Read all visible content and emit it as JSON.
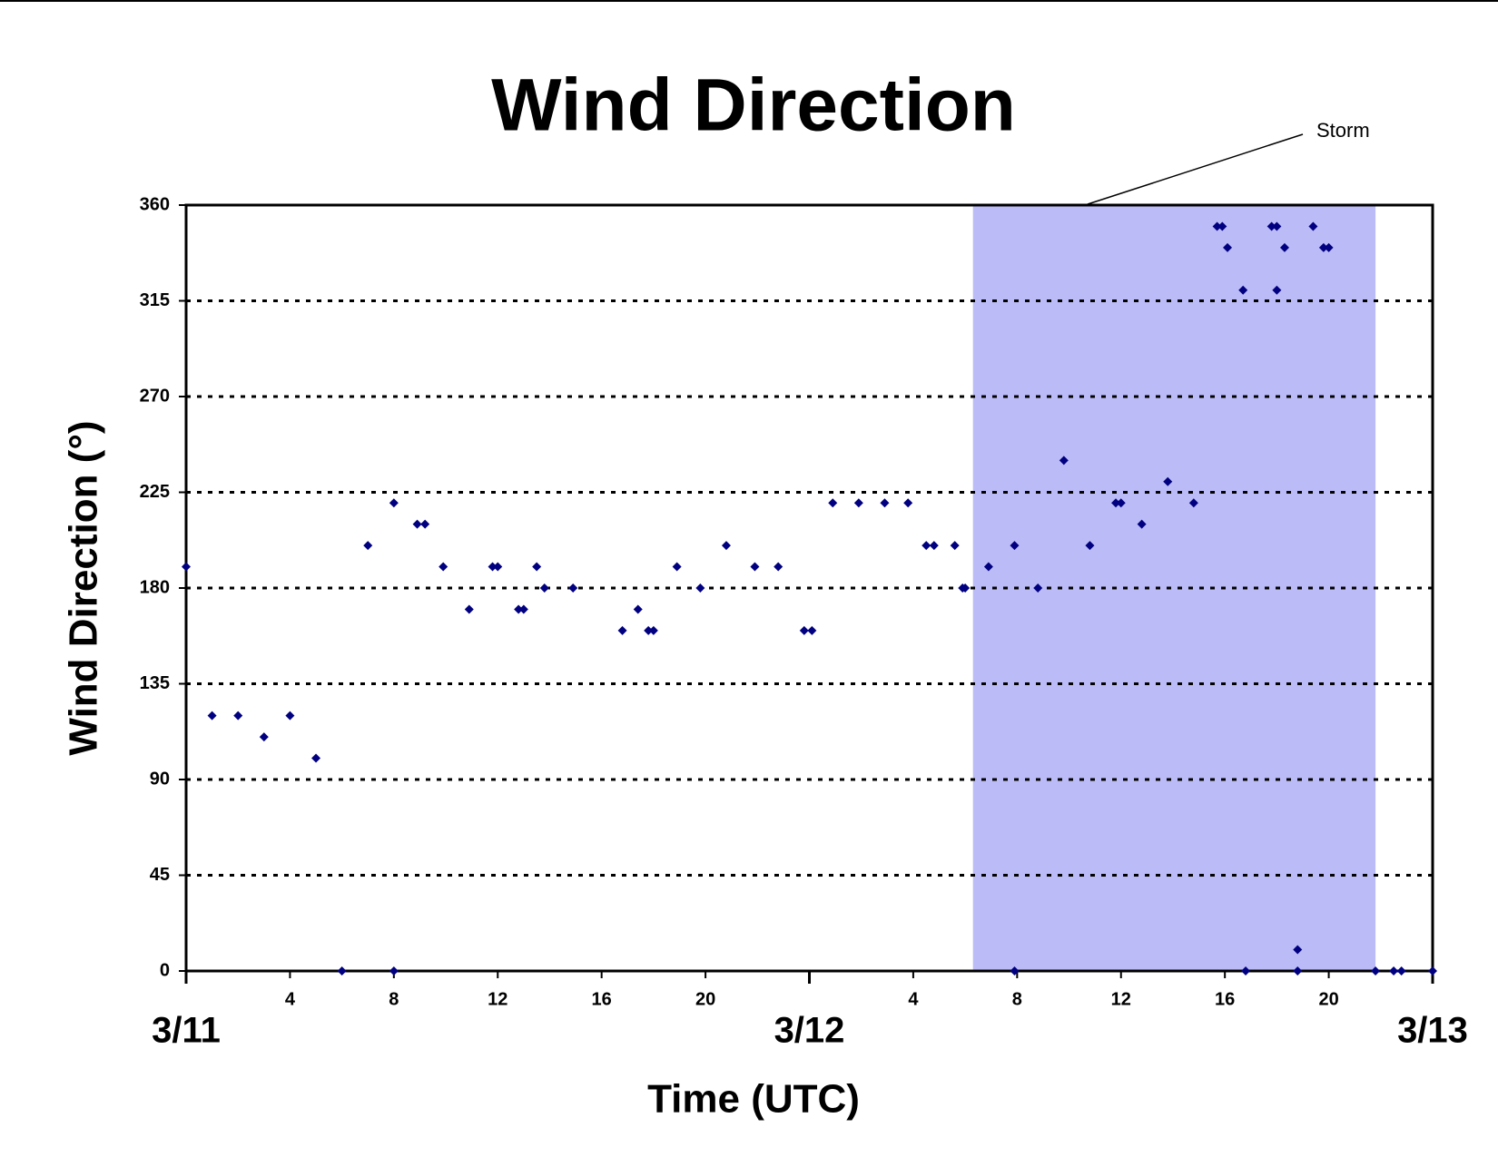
{
  "chart_data": {
    "type": "scatter",
    "title": "Wind Direction",
    "x_label": "Time (UTC)",
    "y_label": "Wind Direction (°)",
    "annotation": "Storm",
    "storm_span": [
      30.3,
      45.8
    ],
    "storm_color": "#bbbbf7",
    "xlim": [
      0,
      48
    ],
    "ylim": [
      0,
      360
    ],
    "yticks": [
      0,
      45,
      90,
      135,
      180,
      225,
      270,
      315,
      360
    ],
    "xticks": [
      4,
      8,
      12,
      16,
      20,
      {
        "value": 28,
        "label": "4"
      },
      {
        "value": 32,
        "label": "8"
      },
      {
        "value": 36,
        "label": "12"
      },
      {
        "value": 40,
        "label": "16"
      },
      {
        "value": 44,
        "label": "20"
      }
    ],
    "date_ticks": [
      {
        "value": 0,
        "label": "3/11"
      },
      {
        "value": 24,
        "label": "3/12"
      },
      {
        "value": 48,
        "label": "3/13"
      }
    ],
    "grid": true,
    "series": [
      {
        "name": "Wind Direction",
        "color": "#000080",
        "x": [
          0,
          1,
          2,
          3,
          4,
          5,
          6,
          7,
          8,
          8,
          8.9,
          9.2,
          9.9,
          10.9,
          11.8,
          12,
          12.8,
          13,
          13.5,
          13.8,
          14.9,
          16.8,
          17.4,
          17.8,
          18,
          18.9,
          19.8,
          20.8,
          21.9,
          22.8,
          23.8,
          24.1,
          24.9,
          25.9,
          26.9,
          27.8,
          28.5,
          28.8,
          29.6,
          29.9,
          30,
          30.9,
          31.9,
          31.9,
          32.8,
          33.8,
          34.8,
          35.8,
          36,
          36.8,
          37.8,
          38.8,
          39.7,
          39.9,
          40.1,
          40.7,
          40.8,
          41.8,
          42,
          42,
          42.3,
          42.8,
          42.8,
          43.4,
          43.8,
          44,
          45.8,
          46.5,
          46.8,
          48
        ],
        "values": [
          190,
          120,
          120,
          110,
          120,
          100,
          0,
          200,
          220,
          0,
          210,
          210,
          190,
          170,
          190,
          190,
          170,
          170,
          190,
          180,
          180,
          160,
          170,
          160,
          160,
          190,
          180,
          200,
          190,
          190,
          160,
          160,
          220,
          220,
          220,
          220,
          200,
          200,
          200,
          180,
          180,
          190,
          200,
          0,
          180,
          240,
          200,
          220,
          220,
          210,
          230,
          220,
          350,
          350,
          340,
          320,
          0,
          350,
          350,
          320,
          340,
          10,
          0,
          350,
          340,
          340,
          0,
          0,
          0,
          0
        ]
      }
    ]
  }
}
